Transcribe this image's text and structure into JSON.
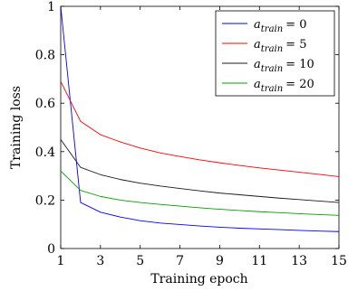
{
  "chart_data": {
    "type": "line",
    "xlabel": "Training epoch",
    "ylabel": "Training loss",
    "xlim": [
      1,
      15
    ],
    "ylim": [
      0,
      1
    ],
    "xticks": [
      1,
      3,
      5,
      7,
      9,
      11,
      13,
      15
    ],
    "yticks": [
      0,
      0.2,
      0.4,
      0.6,
      0.8,
      1
    ],
    "ytick_labels": [
      "0",
      "0.2",
      "0.4",
      "0.6",
      "0.8",
      "1"
    ],
    "grid": false,
    "legend_position": "top-right",
    "x": [
      1,
      2,
      3,
      4,
      5,
      6,
      7,
      8,
      9,
      10,
      11,
      12,
      13,
      14,
      15
    ],
    "series": [
      {
        "name": "a_train = 0",
        "legend_var": "a",
        "legend_sub": "train",
        "legend_rhs": "= 0",
        "color": "#0000ff",
        "values": [
          1.0,
          0.19,
          0.15,
          0.13,
          0.115,
          0.105,
          0.099,
          0.093,
          0.088,
          0.084,
          0.081,
          0.078,
          0.075,
          0.072,
          0.07
        ]
      },
      {
        "name": "a_train = 5",
        "legend_var": "a",
        "legend_sub": "train",
        "legend_rhs": "= 5",
        "color": "#ff0000",
        "values": [
          0.69,
          0.525,
          0.47,
          0.44,
          0.415,
          0.395,
          0.38,
          0.366,
          0.354,
          0.343,
          0.333,
          0.324,
          0.315,
          0.306,
          0.297
        ]
      },
      {
        "name": "a_train = 10",
        "legend_var": "a",
        "legend_sub": "train",
        "legend_rhs": "= 10",
        "color": "#1a1a1a",
        "values": [
          0.45,
          0.335,
          0.305,
          0.285,
          0.27,
          0.258,
          0.248,
          0.238,
          0.229,
          0.222,
          0.215,
          0.208,
          0.202,
          0.196,
          0.19
        ]
      },
      {
        "name": "a_train = 20",
        "legend_var": "a",
        "legend_sub": "train",
        "legend_rhs": "= 20",
        "color": "#00a000",
        "values": [
          0.32,
          0.24,
          0.215,
          0.2,
          0.19,
          0.182,
          0.175,
          0.168,
          0.162,
          0.157,
          0.152,
          0.148,
          0.144,
          0.14,
          0.137
        ]
      }
    ]
  }
}
